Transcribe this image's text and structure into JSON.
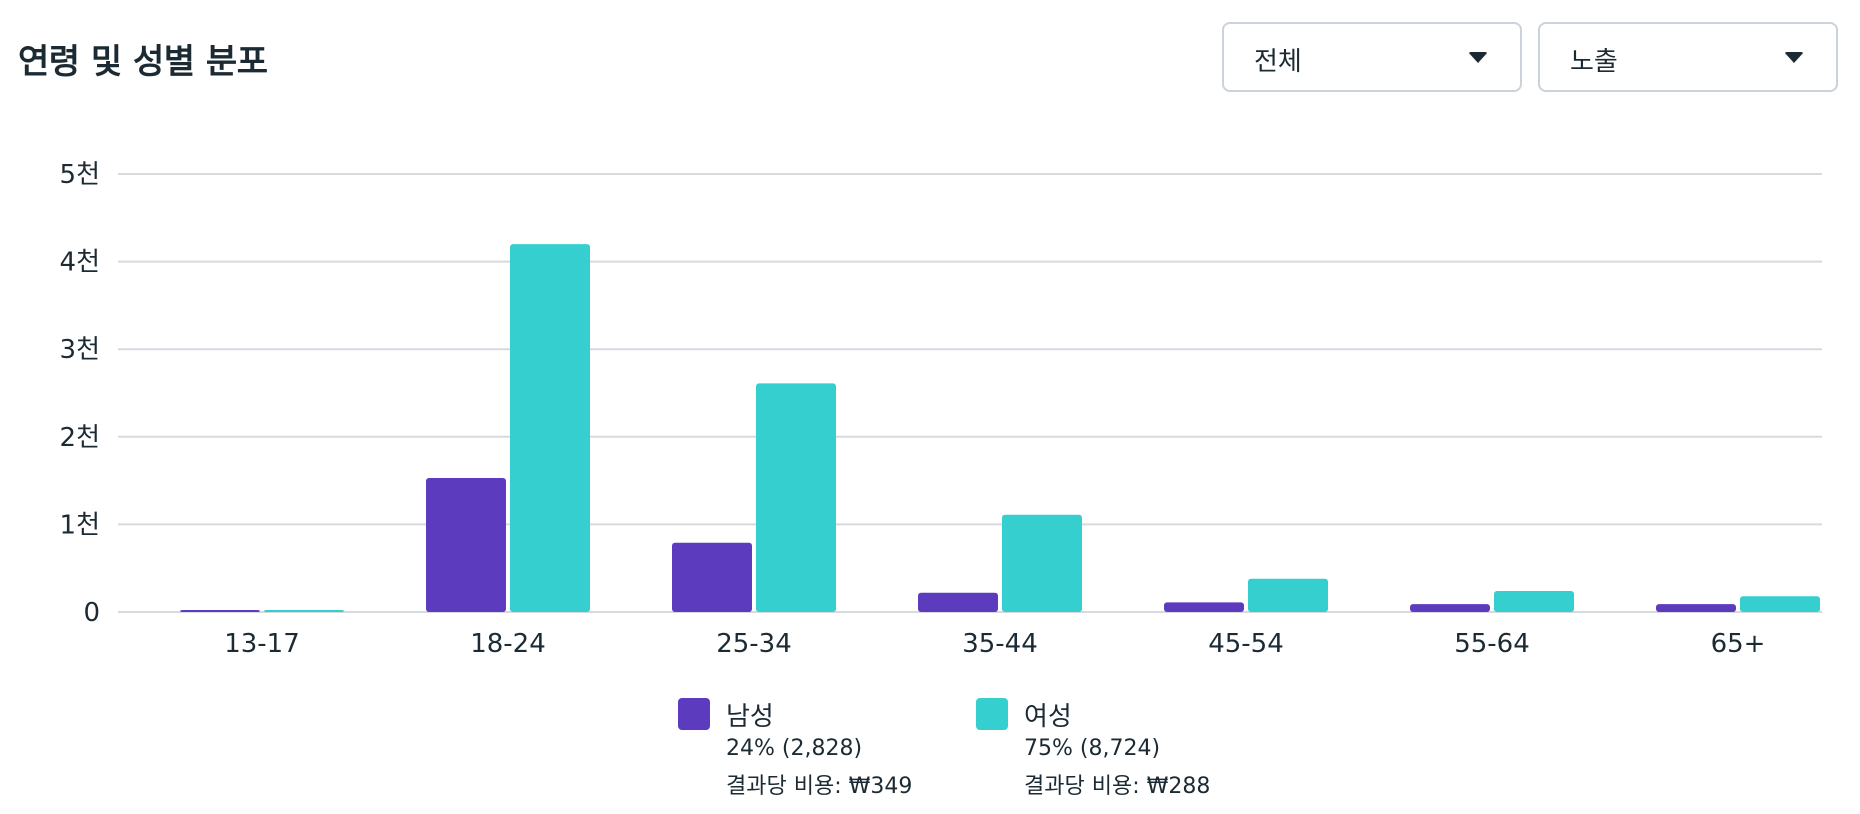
{
  "header": {
    "title": "연령 및 성별 분포",
    "filter_dropdown": {
      "selected": "전체"
    },
    "metric_dropdown": {
      "selected": "노출"
    }
  },
  "colors": {
    "male": "#5c3bbf",
    "female": "#36cfcf",
    "grid": "#d5dadf",
    "text": "#1c2b33"
  },
  "chart_data": {
    "type": "bar",
    "title": "",
    "xlabel": "",
    "ylabel": "",
    "categories": [
      "13-17",
      "18-24",
      "25-34",
      "35-44",
      "45-54",
      "55-64",
      "65+"
    ],
    "series": [
      {
        "name": "남성",
        "values": [
          20,
          1530,
          790,
          220,
          110,
          90,
          90
        ]
      },
      {
        "name": "여성",
        "values": [
          20,
          4200,
          2610,
          1110,
          380,
          240,
          180
        ]
      }
    ],
    "ylim": [
      0,
      5000
    ],
    "yticks": [
      0,
      1000,
      2000,
      3000,
      4000,
      5000
    ],
    "ytick_labels": [
      "0",
      "1천",
      "2천",
      "3천",
      "4천",
      "5천"
    ],
    "grid": true,
    "legend_position": "bottom-center"
  },
  "legend": {
    "male": {
      "name": "남성",
      "share": "24% (2,828)",
      "cost": "결과당 비용: ₩349"
    },
    "female": {
      "name": "여성",
      "share": "75% (8,724)",
      "cost": "결과당 비용: ₩288"
    }
  }
}
